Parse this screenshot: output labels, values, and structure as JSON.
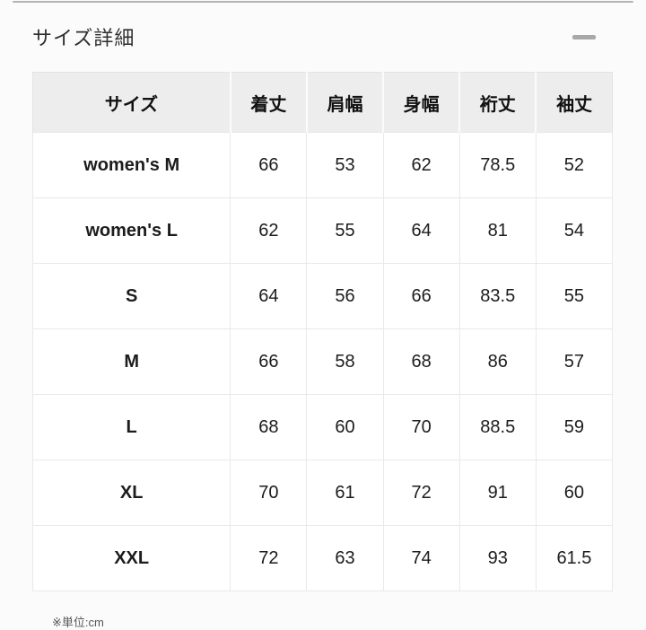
{
  "page": {
    "top_divider_color": "#b3b3b3",
    "background": "#fbfbfb"
  },
  "section": {
    "title": "サイズ詳細",
    "collapse_icon": "minus-icon",
    "icon_color": "#a8a8a8",
    "header_bg": "#ededed",
    "grid_color": "#e9e9e9"
  },
  "size_table": {
    "columns": [
      "サイズ",
      "着丈",
      "肩幅",
      "身幅",
      "裄丈",
      "袖丈"
    ],
    "rows": [
      {
        "size": "women's M",
        "values": [
          "66",
          "53",
          "62",
          "78.5",
          "52"
        ]
      },
      {
        "size": "women's L",
        "values": [
          "62",
          "55",
          "64",
          "81",
          "54"
        ]
      },
      {
        "size": "S",
        "values": [
          "64",
          "56",
          "66",
          "83.5",
          "55"
        ]
      },
      {
        "size": "M",
        "values": [
          "66",
          "58",
          "68",
          "86",
          "57"
        ]
      },
      {
        "size": "L",
        "values": [
          "68",
          "60",
          "70",
          "88.5",
          "59"
        ]
      },
      {
        "size": "XL",
        "values": [
          "70",
          "61",
          "72",
          "91",
          "60"
        ]
      },
      {
        "size": "XXL",
        "values": [
          "72",
          "63",
          "74",
          "93",
          "61.5"
        ]
      }
    ]
  },
  "footnote": {
    "text": "※単位:cm"
  }
}
